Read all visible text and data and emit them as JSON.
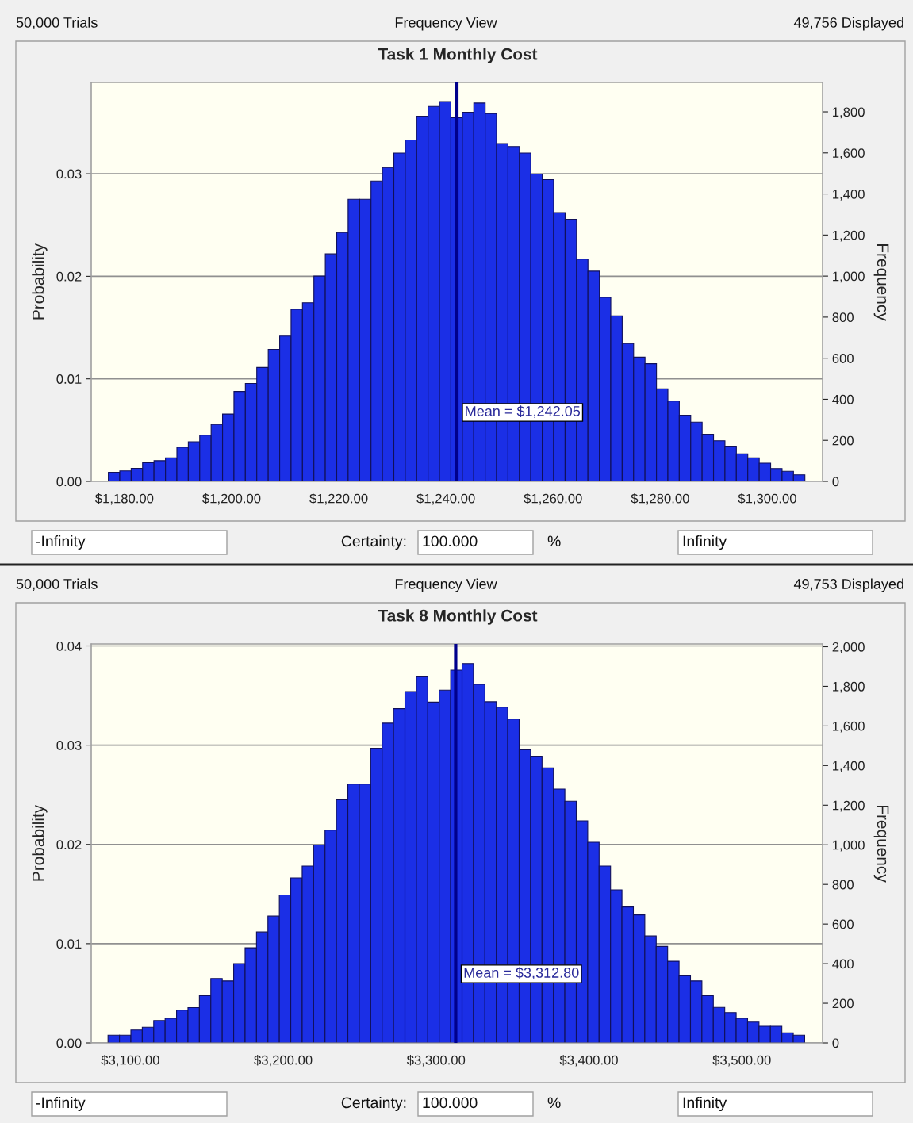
{
  "chart_data": [
    {
      "type": "histogram",
      "title": "Task 1 Monthly Cost",
      "ylabel": "Probability",
      "y2label": "Frequency",
      "bins": [
        1177.0,
        1179.13,
        1181.26,
        1183.39,
        1185.52,
        1187.66,
        1189.79,
        1191.92,
        1194.05,
        1196.18,
        1198.31,
        1200.44,
        1202.57,
        1204.7,
        1206.84,
        1208.97,
        1211.1,
        1213.23,
        1215.36,
        1217.49,
        1219.62,
        1221.75,
        1223.89,
        1226.02,
        1228.15,
        1230.28,
        1232.41,
        1234.54,
        1236.67,
        1238.8,
        1240.93,
        1243.07,
        1245.2,
        1247.33,
        1249.46,
        1251.59,
        1253.72,
        1255.85,
        1257.98,
        1260.11,
        1262.25,
        1264.38,
        1266.51,
        1268.64,
        1270.77,
        1272.9,
        1275.03,
        1277.16,
        1279.3,
        1281.43,
        1283.56,
        1285.69,
        1287.82,
        1289.95,
        1292.08,
        1294.21,
        1296.34,
        1298.48,
        1300.61,
        1302.74,
        1304.87,
        1307.0
      ],
      "series": [
        {
          "color": "#1b2fe6",
          "axis": "y2",
          "values": [
            44,
            51,
            64,
            91,
            101,
            115,
            166,
            193,
            225,
            277,
            328,
            438,
            477,
            555,
            643,
            708,
            838,
            870,
            1000,
            1108,
            1212,
            1374,
            1374,
            1463,
            1529,
            1599,
            1663,
            1779,
            1826,
            1850,
            1771,
            1798,
            1843,
            1792,
            1645,
            1631,
            1599,
            1497,
            1470,
            1309,
            1276,
            1083,
            1024,
            896,
            806,
            671,
            605,
            573,
            451,
            391,
            322,
            289,
            230,
            198,
            172,
            134,
            115,
            89,
            63,
            49,
            32
          ]
        }
      ],
      "xlim": [
        1173.8,
        1310.3
      ],
      "xticks": [
        {
          "value": 1180,
          "label": "$1,180.00"
        },
        {
          "value": 1200,
          "label": "$1,200.00"
        },
        {
          "value": 1220,
          "label": "$1,220.00"
        },
        {
          "value": 1240,
          "label": "$1,240.00"
        },
        {
          "value": 1260,
          "label": "$1,260.00"
        },
        {
          "value": 1280,
          "label": "$1,280.00"
        },
        {
          "value": 1300,
          "label": "$1,300.00"
        }
      ],
      "ylim": [
        0,
        0.0389
      ],
      "yticks": [
        {
          "value": 0,
          "label": "0.00"
        },
        {
          "value": 0.01,
          "label": "0.01"
        },
        {
          "value": 0.02,
          "label": "0.02"
        },
        {
          "value": 0.03,
          "label": "0.03"
        }
      ],
      "y2lim": [
        0,
        1943
      ],
      "y2ticks": [
        0,
        200,
        400,
        600,
        800,
        {
          "value": 1000,
          "label": "1,000"
        },
        {
          "value": 1200,
          "label": "1,200"
        },
        {
          "value": 1400,
          "label": "1,400"
        },
        {
          "value": 1600,
          "label": "1,600"
        },
        {
          "value": 1800,
          "label": "1,800"
        }
      ],
      "grid": "y",
      "ref_lines": [
        {
          "axis": "x",
          "value": 1242.05,
          "label": "Mean = $1,242.05",
          "color": "#00008b"
        }
      ],
      "annotations": [
        "50,000 Trials",
        "Frequency View",
        "49,756 Displayed",
        "-Infinity",
        "Certainty:",
        "100.000",
        "%",
        "Infinity"
      ]
    },
    {
      "type": "histogram",
      "title": "Task 8 Monthly Cost",
      "ylabel": "Probability",
      "y2label": "Frequency",
      "bins": [
        3085.4,
        3092.87,
        3100.34,
        3107.81,
        3115.28,
        3122.75,
        3130.22,
        3137.69,
        3145.16,
        3152.63,
        3160.11,
        3167.58,
        3175.05,
        3182.52,
        3189.99,
        3197.46,
        3204.93,
        3212.4,
        3219.87,
        3227.34,
        3234.81,
        3242.28,
        3249.75,
        3257.22,
        3264.69,
        3272.16,
        3279.63,
        3287.1,
        3294.57,
        3302.04,
        3309.52,
        3316.99,
        3324.46,
        3331.93,
        3339.4,
        3346.87,
        3354.34,
        3361.81,
        3369.28,
        3376.75,
        3384.22,
        3391.69,
        3399.16,
        3406.63,
        3414.1,
        3421.57,
        3429.04,
        3436.51,
        3443.98,
        3451.45,
        3458.93,
        3466.4,
        3473.87,
        3481.34,
        3488.81,
        3496.28,
        3503.75,
        3511.22,
        3518.69,
        3526.16,
        3533.63,
        3541.1
      ],
      "series": [
        {
          "color": "#1b2fe6",
          "axis": "y2",
          "values": [
            39,
            39,
            65,
            79,
            113,
            124,
            165,
            178,
            238,
            325,
            313,
            400,
            480,
            560,
            640,
            747,
            833,
            893,
            999,
            1074,
            1227,
            1307,
            1307,
            1487,
            1614,
            1687,
            1774,
            1848,
            1720,
            1781,
            1882,
            1915,
            1810,
            1722,
            1695,
            1635,
            1480,
            1447,
            1388,
            1281,
            1220,
            1121,
            1013,
            893,
            773,
            686,
            646,
            540,
            487,
            412,
            339,
            313,
            238,
            179,
            153,
            124,
            105,
            84,
            84,
            51,
            39
          ]
        }
      ],
      "xlim": [
        3074.4,
        3552.8
      ],
      "xticks": [
        {
          "value": 3100,
          "label": "$3,100.00"
        },
        {
          "value": 3200,
          "label": "$3,200.00"
        },
        {
          "value": 3300,
          "label": "$3,300.00"
        },
        {
          "value": 3400,
          "label": "$3,400.00"
        },
        {
          "value": 3500,
          "label": "$3,500.00"
        }
      ],
      "ylim": [
        0,
        0.0402
      ],
      "yticks": [
        {
          "value": 0,
          "label": "0.00"
        },
        {
          "value": 0.01,
          "label": "0.01"
        },
        {
          "value": 0.02,
          "label": "0.02"
        },
        {
          "value": 0.03,
          "label": "0.03"
        },
        {
          "value": 0.04,
          "label": "0.04"
        }
      ],
      "y2lim": [
        0,
        2014
      ],
      "y2ticks": [
        0,
        200,
        400,
        600,
        800,
        {
          "value": 1000,
          "label": "1,000"
        },
        {
          "value": 1200,
          "label": "1,200"
        },
        {
          "value": 1400,
          "label": "1,400"
        },
        {
          "value": 1600,
          "label": "1,600"
        },
        {
          "value": 1800,
          "label": "1,800"
        },
        {
          "value": 2000,
          "label": "2,000"
        }
      ],
      "grid": "y",
      "ref_lines": [
        {
          "axis": "x",
          "value": 3312.8,
          "label": "Mean = $3,312.80",
          "color": "#00008b"
        }
      ],
      "annotations": [
        "50,000 Trials",
        "Frequency View",
        "49,753 Displayed",
        "-Infinity",
        "Certainty:",
        "100.000",
        "%",
        "Infinity"
      ]
    }
  ]
}
